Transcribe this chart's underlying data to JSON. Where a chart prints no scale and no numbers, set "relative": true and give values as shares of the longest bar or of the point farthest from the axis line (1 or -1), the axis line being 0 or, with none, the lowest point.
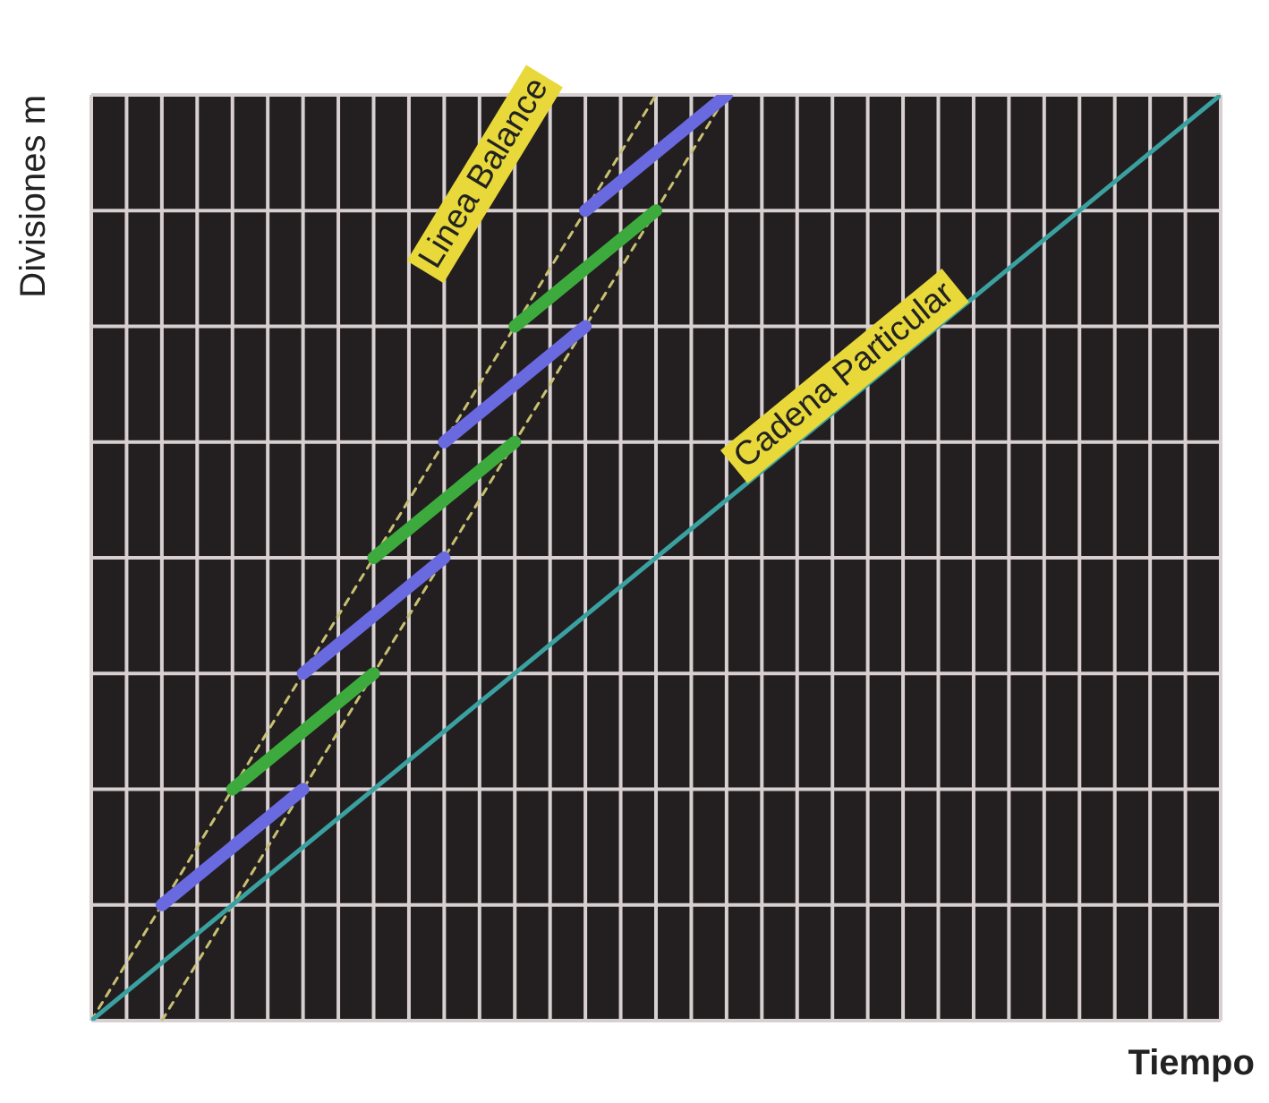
{
  "chart_data": {
    "type": "line",
    "relative": true,
    "xlabel": "Tiempo",
    "ylabel": "Divisiones m",
    "grid": true,
    "marker": "none",
    "categories": [
      null,
      null,
      null,
      null,
      null,
      null,
      null,
      null,
      null,
      null,
      null,
      null,
      null,
      null,
      null,
      null,
      null,
      null,
      null,
      null,
      null,
      null,
      null,
      null,
      null,
      null,
      null,
      null,
      null,
      null,
      null,
      null,
      null
    ],
    "annotations": [
      "Linea Balance",
      "Cadena Particular"
    ],
    "series": [
      {
        "color": "#c8c070",
        "line_style": "dashed",
        "values": [
          0,
          null,
          null,
          null,
          null,
          null,
          null,
          null,
          null,
          null,
          null,
          null,
          null,
          null,
          null,
          null,
          1,
          null,
          null,
          null,
          null,
          null,
          null,
          null,
          null,
          null,
          null,
          null,
          null,
          null,
          null,
          null,
          null
        ]
      },
      {
        "color": "#c8c070",
        "line_style": "dashed",
        "values": [
          null,
          null,
          0,
          null,
          null,
          null,
          null,
          null,
          null,
          null,
          null,
          null,
          null,
          null,
          null,
          null,
          null,
          null,
          1,
          null,
          null,
          null,
          null,
          null,
          null,
          null,
          null,
          null,
          null,
          null,
          null,
          null,
          null
        ]
      },
      {
        "color": "#3aa0a0",
        "values": [
          0,
          null,
          null,
          null,
          null,
          null,
          null,
          null,
          null,
          null,
          null,
          null,
          null,
          null,
          null,
          null,
          null,
          null,
          null,
          null,
          null,
          null,
          null,
          null,
          null,
          null,
          null,
          null,
          null,
          null,
          null,
          null,
          1
        ]
      },
      {
        "color": "#6a6ae0",
        "values": [
          null,
          null,
          0.125,
          null,
          null,
          null,
          0.25,
          null,
          null,
          null,
          null,
          null,
          null,
          null,
          null,
          null,
          null,
          null,
          null,
          null,
          null,
          null,
          null,
          null,
          null,
          null,
          null,
          null,
          null,
          null,
          null,
          null,
          null
        ]
      },
      {
        "color": "#3daa3d",
        "values": [
          null,
          null,
          null,
          null,
          0.25,
          null,
          null,
          null,
          0.375,
          null,
          null,
          null,
          null,
          null,
          null,
          null,
          null,
          null,
          null,
          null,
          null,
          null,
          null,
          null,
          null,
          null,
          null,
          null,
          null,
          null,
          null,
          null,
          null
        ]
      },
      {
        "color": "#6a6ae0",
        "values": [
          null,
          null,
          null,
          null,
          null,
          null,
          0.375,
          null,
          null,
          null,
          0.5,
          null,
          null,
          null,
          null,
          null,
          null,
          null,
          null,
          null,
          null,
          null,
          null,
          null,
          null,
          null,
          null,
          null,
          null,
          null,
          null,
          null,
          null
        ]
      },
      {
        "color": "#3daa3d",
        "values": [
          null,
          null,
          null,
          null,
          null,
          null,
          null,
          null,
          0.5,
          null,
          null,
          null,
          0.625,
          null,
          null,
          null,
          null,
          null,
          null,
          null,
          null,
          null,
          null,
          null,
          null,
          null,
          null,
          null,
          null,
          null,
          null,
          null,
          null
        ]
      },
      {
        "color": "#6a6ae0",
        "values": [
          null,
          null,
          null,
          null,
          null,
          null,
          null,
          null,
          null,
          null,
          0.625,
          null,
          null,
          null,
          0.75,
          null,
          null,
          null,
          null,
          null,
          null,
          null,
          null,
          null,
          null,
          null,
          null,
          null,
          null,
          null,
          null,
          null,
          null
        ]
      },
      {
        "color": "#3daa3d",
        "values": [
          null,
          null,
          null,
          null,
          null,
          null,
          null,
          null,
          null,
          null,
          null,
          null,
          0.75,
          null,
          null,
          null,
          0.875,
          null,
          null,
          null,
          null,
          null,
          null,
          null,
          null,
          null,
          null,
          null,
          null,
          null,
          null,
          null,
          null
        ]
      },
      {
        "color": "#6a6ae0",
        "values": [
          null,
          null,
          null,
          null,
          null,
          null,
          null,
          null,
          null,
          null,
          null,
          null,
          null,
          null,
          0.875,
          null,
          null,
          null,
          1,
          null,
          null,
          null,
          null,
          null,
          null,
          null,
          null,
          null,
          null,
          null,
          null,
          null,
          null
        ]
      }
    ]
  }
}
